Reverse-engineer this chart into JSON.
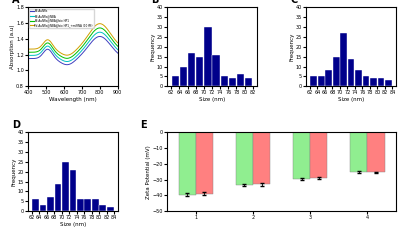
{
  "panel_A": {
    "label": "A",
    "xlabel": "Wavelength (nm)",
    "ylabel": "Absorption (a.u)",
    "xlim": [
      400,
      900
    ],
    "ylim": [
      0.8,
      1.8
    ],
    "yticks": [
      0.8,
      1.0,
      1.2,
      1.4,
      1.6,
      1.8
    ],
    "legend": [
      "Pd-AuNRs",
      "Pd-AuNRs@NBA",
      "Pd-AuNRs@NBA@bio-HP1",
      "Pd-AuNRs@NBA@bio-HP1_+miRNA (10 fM)"
    ],
    "colors": [
      "#4040c0",
      "#00c0c0",
      "#00c000",
      "#d0a000"
    ]
  },
  "panel_B": {
    "label": "B",
    "xlabel": "Size (nm)",
    "ylabel": "Frequency",
    "xlim": [
      61,
      83
    ],
    "ylim": [
      0,
      40
    ],
    "yticks": [
      0,
      5,
      10,
      15,
      20,
      25,
      30,
      35,
      40
    ],
    "bin_edges": [
      62,
      64,
      66,
      68,
      70,
      72,
      74,
      76,
      78,
      80,
      82
    ],
    "values": [
      5,
      10,
      17,
      15,
      30,
      16,
      5,
      4,
      6,
      4
    ],
    "bar_color": "#00008B"
  },
  "panel_C": {
    "label": "C",
    "xlabel": "Size (nm)",
    "ylabel": "Frequency",
    "xlim": [
      61,
      85
    ],
    "ylim": [
      0,
      40
    ],
    "yticks": [
      0,
      5,
      10,
      15,
      20,
      25,
      30,
      35,
      40
    ],
    "bin_edges": [
      62,
      64,
      66,
      68,
      70,
      72,
      74,
      76,
      78,
      80,
      82,
      84
    ],
    "values": [
      5,
      5,
      8,
      15,
      27,
      14,
      8,
      5,
      4,
      4,
      3
    ],
    "bar_color": "#00008B"
  },
  "panel_D": {
    "label": "D",
    "xlabel": "Size (nm)",
    "ylabel": "Frequency",
    "xlim": [
      61,
      85
    ],
    "ylim": [
      0,
      40
    ],
    "yticks": [
      0,
      5,
      10,
      15,
      20,
      25,
      30,
      35,
      40
    ],
    "bin_edges": [
      62,
      64,
      66,
      68,
      70,
      72,
      74,
      76,
      78,
      80,
      82,
      84
    ],
    "values": [
      6,
      3,
      7,
      14,
      25,
      21,
      6,
      6,
      6,
      3,
      2
    ],
    "bar_color": "#00008B"
  },
  "panel_E": {
    "label": "E",
    "xlabel": "",
    "ylabel": "Zeta Potential (mV)",
    "xlim": [
      0.5,
      4.5
    ],
    "ylim": [
      -50,
      0
    ],
    "yticks": [
      0,
      -10,
      -20,
      -30,
      -40,
      -50
    ],
    "xticks": [
      1,
      2,
      3,
      4
    ],
    "green_values": [
      -39.5,
      -33.5,
      -29.5,
      -25.0
    ],
    "red_values": [
      -39.0,
      -33.0,
      -29.0,
      -25.5
    ],
    "green_errors": [
      1.0,
      0.8,
      0.7,
      0.6
    ],
    "red_errors": [
      1.0,
      0.8,
      0.7,
      0.6
    ],
    "green_color": "#90EE90",
    "red_color": "#FF8080"
  }
}
